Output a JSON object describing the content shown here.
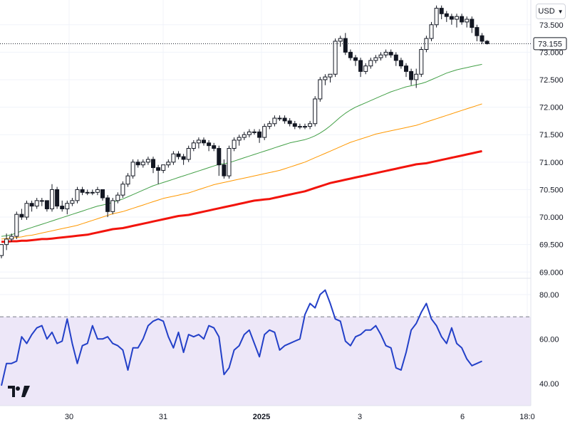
{
  "currency": {
    "label": "USD",
    "icon": "chevron-down-icon"
  },
  "logo": {
    "icon": "tradingview-logo-icon"
  },
  "price_axis": {
    "ticks": [
      "73.500",
      "73.000",
      "72.500",
      "72.000",
      "71.500",
      "71.000",
      "70.500",
      "70.000",
      "69.500",
      "69.000"
    ],
    "current_price": "73.155"
  },
  "rsi_axis": {
    "ticks": [
      "80.00",
      "60.00",
      "40.00"
    ]
  },
  "time_axis": {
    "ticks": [
      "30",
      "31",
      "2025",
      "3",
      "6",
      "18:0"
    ]
  },
  "colors": {
    "candle": "#131722",
    "ma_fast": "#43a047",
    "ma_mid": "#ff9800",
    "ma_slow": "#f2140c",
    "rsi": "#2340c8",
    "rsi_band": "#ede7f8"
  },
  "chart_data": {
    "type": "candlestick",
    "title": "",
    "time_labels": [
      "30",
      "31",
      "2025",
      "3",
      "6",
      "18:0"
    ],
    "price_ylim": [
      68.9,
      73.95
    ],
    "candles": [
      [
        69.3,
        69.5,
        69.25,
        69.5
      ],
      [
        69.5,
        69.7,
        69.4,
        69.6
      ],
      [
        69.6,
        69.7,
        69.55,
        69.65
      ],
      [
        69.65,
        70.1,
        69.6,
        70.05
      ],
      [
        70.05,
        70.15,
        69.95,
        70.0
      ],
      [
        70.0,
        70.3,
        69.95,
        70.25
      ],
      [
        70.25,
        70.3,
        70.1,
        70.2
      ],
      [
        70.2,
        70.35,
        70.15,
        70.3
      ],
      [
        70.3,
        70.35,
        70.2,
        70.3
      ],
      [
        70.3,
        70.3,
        70.1,
        70.15
      ],
      [
        70.15,
        70.6,
        70.1,
        70.5
      ],
      [
        70.5,
        70.55,
        70.15,
        70.2
      ],
      [
        70.2,
        70.3,
        70.1,
        70.15
      ],
      [
        70.15,
        70.3,
        70.05,
        70.25
      ],
      [
        70.25,
        70.35,
        70.2,
        70.3
      ],
      [
        70.3,
        70.55,
        70.25,
        70.5
      ],
      [
        70.5,
        70.55,
        70.4,
        70.45
      ],
      [
        70.45,
        70.5,
        70.4,
        70.45
      ],
      [
        70.45,
        70.5,
        70.4,
        70.45
      ],
      [
        70.45,
        70.55,
        70.4,
        70.5
      ],
      [
        70.5,
        70.5,
        70.3,
        70.35
      ],
      [
        70.35,
        70.4,
        70.0,
        70.1
      ],
      [
        70.1,
        70.35,
        70.05,
        70.3
      ],
      [
        70.3,
        70.45,
        70.25,
        70.4
      ],
      [
        70.4,
        70.65,
        70.35,
        70.6
      ],
      [
        70.6,
        70.8,
        70.55,
        70.75
      ],
      [
        70.75,
        71.05,
        70.7,
        71.0
      ],
      [
        71.0,
        71.05,
        70.9,
        70.95
      ],
      [
        70.95,
        71.05,
        70.9,
        71.0
      ],
      [
        71.0,
        71.1,
        70.95,
        71.05
      ],
      [
        71.05,
        71.1,
        70.8,
        70.9
      ],
      [
        70.9,
        70.95,
        70.6,
        70.85
      ],
      [
        70.85,
        70.95,
        70.8,
        70.95
      ],
      [
        70.95,
        71.05,
        70.9,
        71.0
      ],
      [
        71.0,
        71.2,
        70.95,
        71.15
      ],
      [
        71.15,
        71.2,
        71.05,
        71.1
      ],
      [
        71.1,
        71.15,
        70.95,
        71.05
      ],
      [
        71.05,
        71.3,
        71.0,
        71.25
      ],
      [
        71.25,
        71.4,
        71.2,
        71.35
      ],
      [
        71.35,
        71.45,
        71.25,
        71.4
      ],
      [
        71.4,
        71.45,
        71.3,
        71.35
      ],
      [
        71.35,
        71.4,
        71.2,
        71.3
      ],
      [
        71.3,
        71.35,
        71.2,
        71.25
      ],
      [
        71.25,
        71.3,
        70.75,
        70.95
      ],
      [
        70.95,
        71.05,
        70.7,
        70.75
      ],
      [
        70.75,
        71.3,
        70.7,
        71.25
      ],
      [
        71.25,
        71.45,
        71.2,
        71.4
      ],
      [
        71.4,
        71.5,
        71.3,
        71.45
      ],
      [
        71.45,
        71.55,
        71.4,
        71.5
      ],
      [
        71.5,
        71.6,
        71.45,
        71.55
      ],
      [
        71.55,
        71.6,
        71.5,
        71.55
      ],
      [
        71.55,
        71.6,
        71.35,
        71.45
      ],
      [
        71.45,
        71.7,
        71.4,
        71.65
      ],
      [
        71.65,
        71.75,
        71.6,
        71.7
      ],
      [
        71.7,
        71.85,
        71.65,
        71.8
      ],
      [
        71.8,
        71.85,
        71.75,
        71.8
      ],
      [
        71.8,
        71.85,
        71.7,
        71.75
      ],
      [
        71.75,
        71.8,
        71.65,
        71.7
      ],
      [
        71.7,
        71.75,
        71.6,
        71.65
      ],
      [
        71.65,
        71.7,
        71.6,
        71.65
      ],
      [
        71.65,
        71.7,
        71.6,
        71.65
      ],
      [
        71.65,
        71.75,
        71.6,
        71.7
      ],
      [
        71.7,
        72.2,
        71.65,
        72.15
      ],
      [
        72.15,
        72.55,
        72.1,
        72.5
      ],
      [
        72.5,
        72.6,
        72.4,
        72.55
      ],
      [
        72.55,
        72.6,
        72.45,
        72.6
      ],
      [
        72.6,
        73.25,
        72.55,
        73.2
      ],
      [
        73.2,
        73.3,
        73.1,
        73.25
      ],
      [
        73.25,
        73.35,
        72.95,
        73.0
      ],
      [
        73.0,
        73.05,
        72.85,
        72.9
      ],
      [
        72.9,
        72.95,
        72.75,
        72.85
      ],
      [
        72.85,
        72.9,
        72.55,
        72.65
      ],
      [
        72.65,
        72.8,
        72.6,
        72.75
      ],
      [
        72.75,
        72.9,
        72.7,
        72.85
      ],
      [
        72.85,
        72.95,
        72.8,
        72.9
      ],
      [
        72.9,
        73.0,
        72.85,
        72.95
      ],
      [
        72.95,
        73.05,
        72.9,
        73.0
      ],
      [
        73.0,
        73.05,
        72.9,
        72.95
      ],
      [
        72.95,
        73.0,
        72.75,
        72.85
      ],
      [
        72.85,
        72.9,
        72.7,
        72.75
      ],
      [
        72.75,
        72.8,
        72.55,
        72.65
      ],
      [
        72.65,
        72.7,
        72.4,
        72.5
      ],
      [
        72.5,
        72.7,
        72.35,
        72.6
      ],
      [
        72.6,
        73.1,
        72.55,
        73.05
      ],
      [
        73.05,
        73.3,
        73.0,
        73.25
      ],
      [
        73.25,
        73.55,
        73.2,
        73.5
      ],
      [
        73.5,
        73.85,
        73.45,
        73.8
      ],
      [
        73.8,
        73.85,
        73.6,
        73.7
      ],
      [
        73.7,
        73.75,
        73.55,
        73.65
      ],
      [
        73.65,
        73.7,
        73.5,
        73.6
      ],
      [
        73.6,
        73.7,
        73.45,
        73.65
      ],
      [
        73.65,
        73.7,
        73.5,
        73.55
      ],
      [
        73.55,
        73.65,
        73.45,
        73.6
      ],
      [
        73.6,
        73.65,
        73.35,
        73.45
      ],
      [
        73.45,
        73.5,
        73.2,
        73.3
      ],
      [
        73.3,
        73.35,
        73.15,
        73.2
      ],
      [
        73.2,
        73.22,
        73.14,
        73.155
      ]
    ],
    "moving_averages": [
      {
        "role": "fast",
        "values": [
          69.65,
          69.66,
          69.68,
          69.71,
          69.75,
          69.78,
          69.81,
          69.84,
          69.87,
          69.9,
          69.93,
          69.96,
          69.99,
          70.02,
          70.05,
          70.08,
          70.11,
          70.14,
          70.17,
          70.2,
          70.22,
          70.24,
          70.27,
          70.3,
          70.33,
          70.37,
          70.41,
          70.45,
          70.49,
          70.53,
          70.57,
          70.6,
          70.63,
          70.66,
          70.69,
          70.72,
          70.75,
          70.78,
          70.81,
          70.84,
          70.87,
          70.9,
          70.93,
          70.96,
          70.97,
          70.99,
          71.02,
          71.05,
          71.08,
          71.11,
          71.14,
          71.17,
          71.2,
          71.23,
          71.26,
          71.29,
          71.32,
          71.35,
          71.37,
          71.39,
          71.41,
          71.44,
          71.48,
          71.53,
          71.59,
          71.66,
          71.74,
          71.82,
          71.89,
          71.95,
          72.0,
          72.04,
          72.08,
          72.12,
          72.16,
          72.2,
          72.24,
          72.28,
          72.31,
          72.34,
          72.37,
          72.39,
          72.41,
          72.43,
          72.46,
          72.5,
          72.54,
          72.58,
          72.62,
          72.65,
          72.68,
          72.7,
          72.72,
          72.74,
          72.76,
          72.78
        ]
      },
      {
        "role": "mid",
        "values": [
          69.6,
          69.61,
          69.62,
          69.63,
          69.64,
          69.66,
          69.67,
          69.69,
          69.71,
          69.73,
          69.75,
          69.77,
          69.79,
          69.81,
          69.83,
          69.85,
          69.88,
          69.91,
          69.94,
          69.97,
          70.0,
          70.03,
          70.06,
          70.08,
          70.1,
          70.13,
          70.16,
          70.19,
          70.22,
          70.25,
          70.28,
          70.31,
          70.34,
          70.36,
          70.38,
          70.4,
          70.42,
          70.44,
          70.47,
          70.5,
          70.53,
          70.56,
          70.59,
          70.61,
          70.63,
          70.65,
          70.67,
          70.69,
          70.71,
          70.73,
          70.75,
          70.77,
          70.79,
          70.81,
          70.83,
          70.85,
          70.88,
          70.91,
          70.94,
          70.97,
          71.0,
          71.04,
          71.08,
          71.12,
          71.16,
          71.2,
          71.24,
          71.28,
          71.32,
          71.36,
          71.39,
          71.42,
          71.45,
          71.48,
          71.51,
          71.53,
          71.55,
          71.57,
          71.59,
          71.61,
          71.63,
          71.65,
          71.67,
          71.7,
          71.73,
          71.76,
          71.79,
          71.82,
          71.85,
          71.88,
          71.91,
          71.94,
          71.97,
          72.0,
          72.03,
          72.06
        ]
      },
      {
        "role": "slow",
        "values": [
          69.55,
          69.55,
          69.56,
          69.56,
          69.57,
          69.57,
          69.58,
          69.59,
          69.6,
          69.6,
          69.61,
          69.62,
          69.63,
          69.64,
          69.65,
          69.66,
          69.67,
          69.68,
          69.7,
          69.72,
          69.74,
          69.76,
          69.78,
          69.79,
          69.8,
          69.82,
          69.84,
          69.86,
          69.88,
          69.9,
          69.92,
          69.94,
          69.96,
          69.98,
          70.0,
          70.02,
          70.03,
          70.04,
          70.06,
          70.08,
          70.1,
          70.12,
          70.14,
          70.16,
          70.18,
          70.2,
          70.22,
          70.24,
          70.26,
          70.28,
          70.3,
          70.31,
          70.32,
          70.33,
          70.35,
          70.37,
          70.39,
          70.41,
          70.43,
          70.45,
          70.47,
          70.5,
          70.53,
          70.56,
          70.59,
          70.62,
          70.64,
          70.66,
          70.68,
          70.7,
          70.72,
          70.74,
          70.76,
          70.78,
          70.8,
          70.82,
          70.84,
          70.86,
          70.88,
          70.9,
          70.92,
          70.94,
          70.96,
          70.97,
          70.98,
          71.0,
          71.02,
          71.04,
          71.06,
          71.08,
          71.1,
          71.12,
          71.14,
          71.16,
          71.18,
          71.2
        ]
      }
    ],
    "rsi": {
      "ylim": [
        30,
        87
      ],
      "upper_band": 70,
      "lower_band": 30,
      "values": [
        39,
        49,
        49,
        50,
        61,
        58,
        62,
        65,
        66,
        60,
        63,
        58,
        59,
        69,
        58,
        49,
        57,
        58,
        66,
        60,
        60,
        61,
        58,
        57,
        55,
        46,
        56,
        56,
        60,
        66,
        68,
        69,
        68,
        61,
        56,
        63,
        54,
        62,
        61,
        62,
        60,
        66,
        65,
        61,
        44,
        47,
        55,
        57,
        62,
        64,
        58,
        52,
        62,
        64,
        63,
        55,
        57,
        58,
        59,
        60,
        71,
        76,
        74,
        80,
        82,
        76,
        69,
        68,
        59,
        57,
        61,
        62,
        64,
        64,
        66,
        62,
        57,
        56,
        47,
        46,
        54,
        64,
        67,
        72,
        76,
        69,
        66,
        61,
        58,
        65,
        58,
        56,
        51,
        48,
        49,
        50
      ]
    }
  }
}
